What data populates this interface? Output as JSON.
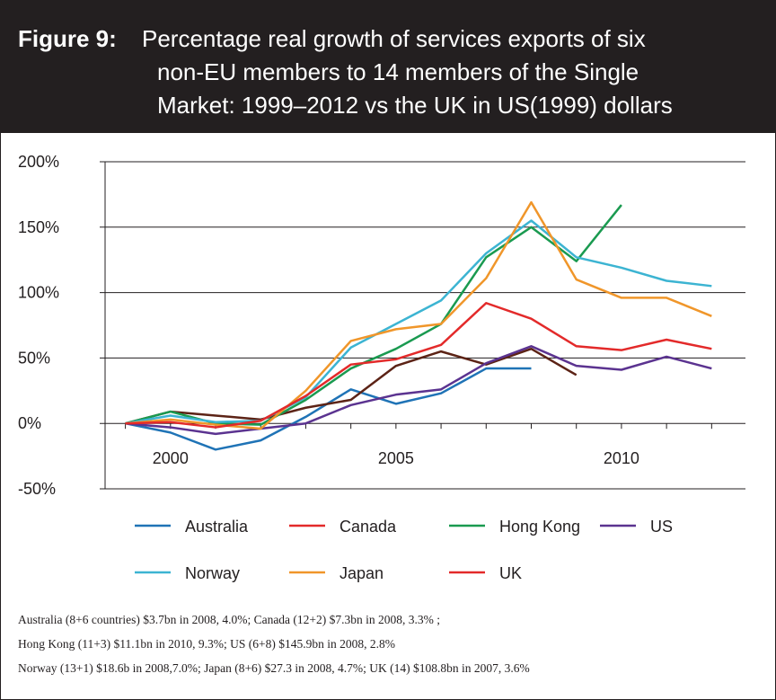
{
  "chart_data": {
    "type": "line",
    "title_label": "Figure 9:",
    "title_lines": [
      "Percentage real growth of services exports of six",
      "non-EU members to 14 members of the Single",
      "Market: 1999–2012 vs the UK in US(1999) dollars"
    ],
    "x": [
      1999,
      2000,
      2001,
      2002,
      2003,
      2004,
      2005,
      2006,
      2007,
      2008,
      2009,
      2010,
      2011,
      2012
    ],
    "xlim": [
      1998.55,
      2012.75
    ],
    "xticks": [
      2000,
      2005,
      2010
    ],
    "ylim": [
      -50,
      200
    ],
    "yticks": [
      {
        "value": -50,
        "label": "-50%"
      },
      {
        "value": 0,
        "label": "0%"
      },
      {
        "value": 50,
        "label": "50%"
      },
      {
        "value": 100,
        "label": "100%"
      },
      {
        "value": 150,
        "label": "150%"
      },
      {
        "value": 200,
        "label": "200%"
      }
    ],
    "grid": true,
    "series": [
      {
        "name": "Australia",
        "color": "#1f73b6",
        "values": [
          0,
          -7,
          -20,
          -13,
          5,
          26,
          15,
          23,
          42,
          42,
          null,
          null,
          null,
          null
        ]
      },
      {
        "name": "Canada",
        "color": "#5c2316",
        "legend_color": "#e32a2a",
        "values": [
          0,
          9,
          6,
          3,
          12,
          18,
          44,
          55,
          45,
          57,
          37,
          null,
          null,
          null
        ]
      },
      {
        "name": "Hong Kong",
        "color": "#1a9a50",
        "values": [
          0,
          9,
          0,
          -1,
          18,
          42,
          57,
          76,
          127,
          150,
          124,
          167,
          null,
          null
        ]
      },
      {
        "name": "US",
        "color": "#5b3390",
        "values": [
          0,
          -3,
          -8,
          -4,
          0,
          14,
          22,
          26,
          46,
          59,
          44,
          41,
          51,
          42
        ]
      },
      {
        "name": "Norway",
        "color": "#3cb4d2",
        "values": [
          0,
          6,
          1,
          2,
          20,
          58,
          76,
          94,
          130,
          155,
          127,
          119,
          109,
          105
        ]
      },
      {
        "name": "Japan",
        "color": "#f0962a",
        "values": [
          0,
          3,
          -1,
          -4,
          25,
          63,
          72,
          76,
          111,
          169,
          110,
          96,
          96,
          82
        ]
      },
      {
        "name": "UK",
        "color": "#e32a2a",
        "values": [
          0,
          1,
          -3,
          2,
          21,
          45,
          49,
          60,
          92,
          80,
          59,
          56,
          64,
          57
        ]
      }
    ],
    "notes": [
      "Australia (8+6 countries) $3.7bn in 2008, 4.0%; Canada (12+2) $7.3bn in 2008, 3.3% ;",
      "Hong Kong (11+3) $11.1bn in 2010, 9.3%; US (6+8) $145.9bn in 2008, 2.8%",
      "Norway (13+1) $18.6b in 2008,7.0%; Japan (8+6) $27.3 in 2008, 4.7%; UK (14) $108.8bn in 2007, 3.6%"
    ]
  }
}
